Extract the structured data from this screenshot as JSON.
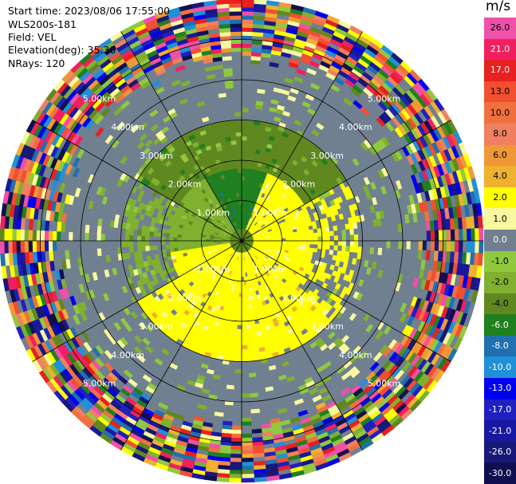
{
  "info": {
    "start_time": "Start time: 2023/08/06 17:55:00",
    "station": "WLS200s-181",
    "field": "Field: VEL",
    "elevation": "Elevation(deg): 35.30",
    "nrays": "NRays: 120"
  },
  "chart_data": {
    "type": "heatmap",
    "projection": "polar-ppi",
    "field": "VEL",
    "unit": "m/s",
    "range_rings_km": [
      1.0,
      2.0,
      3.0,
      4.0,
      5.0
    ],
    "range_ring_labels": [
      "1.00km",
      "2.00km",
      "3.00km",
      "4.00km",
      "5.00km"
    ],
    "max_range_km": 6.0,
    "radial_spokes_deg": [
      0,
      30,
      60,
      90,
      120,
      150,
      180,
      210,
      240,
      270,
      300,
      330
    ],
    "nrays": 120,
    "colorbar": {
      "ticks": [
        "26.0",
        "21.0",
        "17.0",
        "13.0",
        "10.0",
        "8.0",
        "6.0",
        "4.0",
        "2.0",
        "1.0",
        "0.0",
        "-1.0",
        "-2.0",
        "-4.0",
        "-6.0",
        "-8.0",
        "-10.0",
        "-13.0",
        "-17.0",
        "-21.0",
        "-26.0",
        "-30.0"
      ],
      "colors": [
        "#f050a8",
        "#f02060",
        "#e82020",
        "#f05030",
        "#f07040",
        "#f08060",
        "#f09838",
        "#f0b030",
        "#ffff00",
        "#f8f8a0",
        "#708090",
        "#90c840",
        "#80b030",
        "#608820",
        "#208020",
        "#2070b0",
        "#2090d8",
        "#0000f0",
        "#2020c0",
        "#1818a0",
        "#181878",
        "#101050"
      ]
    },
    "velocity_regions": [
      {
        "sector": "north-center",
        "value_ms": -5.0
      },
      {
        "sector": "north-ring",
        "value_ms": -2.5
      },
      {
        "sector": "east-inner",
        "value_ms": 2.5
      },
      {
        "sector": "south-southwest",
        "value_ms": 2.5
      },
      {
        "sector": "west-inner",
        "value_ms": -2.0
      },
      {
        "sector": "mid-ring",
        "value_ms": 0.0
      },
      {
        "sector": "outer-ring",
        "value_ms": "noisy"
      }
    ]
  }
}
